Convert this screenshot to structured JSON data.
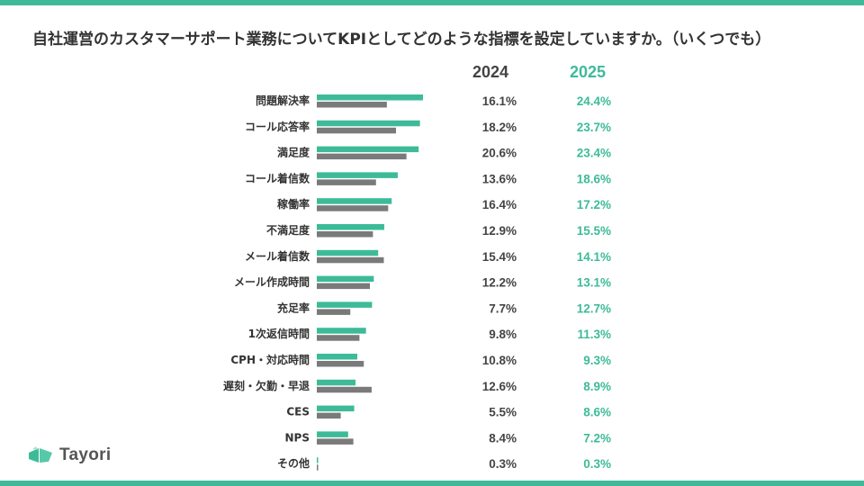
{
  "title": "自社運営のカスタマーサポート業務についてKPIとしてどのような指標を設定していますか。（いくつでも）",
  "brand": {
    "name": "Tayori"
  },
  "colors": {
    "accent": "#3dbb98",
    "gray": "#7a7a7a",
    "text": "#333333"
  },
  "chart_data": {
    "type": "bar",
    "orientation": "horizontal",
    "title": "自社運営のカスタマーサポート業務についてKPIとしてどのような指標を設定していますか。（いくつでも）",
    "unit": "%",
    "categories": [
      "問題解決率",
      "コール応答率",
      "満足度",
      "コール着信数",
      "稼働率",
      "不満足度",
      "メール着信数",
      "メール作成時間",
      "充足率",
      "1次返信時間",
      "CPH・対応時間",
      "遅刻・欠勤・早退",
      "CES",
      "NPS",
      "その他"
    ],
    "series": [
      {
        "name": "2025",
        "color": "#3dbb98",
        "values": [
          24.4,
          23.7,
          23.4,
          18.6,
          17.2,
          15.5,
          14.1,
          13.1,
          12.7,
          11.3,
          9.3,
          8.9,
          8.6,
          7.2,
          0.3
        ]
      },
      {
        "name": "2024",
        "color": "#7a7a7a",
        "values": [
          16.1,
          18.2,
          20.6,
          13.6,
          16.4,
          12.9,
          15.4,
          12.2,
          7.7,
          9.8,
          10.8,
          12.6,
          5.5,
          8.4,
          0.3
        ]
      }
    ],
    "value_columns": [
      {
        "year": "2024",
        "color": "#444444",
        "labels": [
          "16.1%",
          "18.2%",
          "20.6%",
          "13.6%",
          "16.4%",
          "12.9%",
          "15.4%",
          "12.2%",
          "7.7%",
          "9.8%",
          "10.8%",
          "12.6%",
          "5.5%",
          "8.4%",
          "0.3%"
        ]
      },
      {
        "year": "2025",
        "color": "#3dbb98",
        "labels": [
          "24.4%",
          "23.7%",
          "23.4%",
          "18.6%",
          "17.2%",
          "15.5%",
          "14.1%",
          "13.1%",
          "12.7%",
          "11.3%",
          "9.3%",
          "8.9%",
          "8.6%",
          "7.2%",
          "0.3%"
        ]
      }
    ]
  }
}
